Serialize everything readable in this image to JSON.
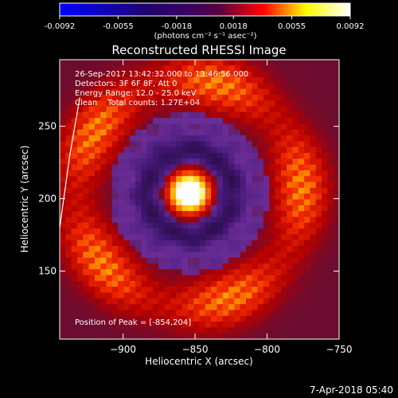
{
  "chart_data": {
    "type": "heatmap",
    "title": "Reconstructed RHESSI Image",
    "xlabel": "Heliocentric X (arcsec)",
    "ylabel": "Heliocentric Y (arcsec)",
    "xlim": [
      -944,
      -750
    ],
    "ylim": [
      103,
      296
    ],
    "x_ticks": [
      -900,
      -850,
      -800,
      -750
    ],
    "y_ticks": [
      150,
      200,
      250
    ],
    "colorbar": {
      "min": -0.0092,
      "max": 0.0092,
      "ticks": [
        -0.0092,
        -0.0055,
        -0.0018,
        0.0018,
        0.0055,
        0.0092
      ],
      "tick_labels": [
        "-0.0092",
        "-0.0055",
        "-0.0018",
        "0.0018",
        "0.0055",
        "0.0092"
      ],
      "unit_label": "(photons cm⁻² s⁻¹ asec⁻²)",
      "colors": [
        "#0000ff",
        "#000000",
        "#ff0000",
        "#ffff00",
        "#ffffff"
      ]
    },
    "annotations": {
      "time_range": "26-Sep-2017 13:42:32.000 to 13:46:56.000",
      "detectors": "Detectors: 3F 6F 8F, Att 0",
      "energy": "Energy Range: 12.0 - 25.0 keV",
      "method": "Clean    Total counts: 1.27E+04",
      "peak": "Position of Peak = [-854,204]"
    },
    "peak": {
      "x": -854,
      "y": 204
    },
    "limb_curve": {
      "x": [
        -930,
        -937,
        -944
      ],
      "y": [
        270,
        230,
        180
      ]
    },
    "grid": false
  },
  "footer": {
    "date": "7-Apr-2018 05:40"
  }
}
